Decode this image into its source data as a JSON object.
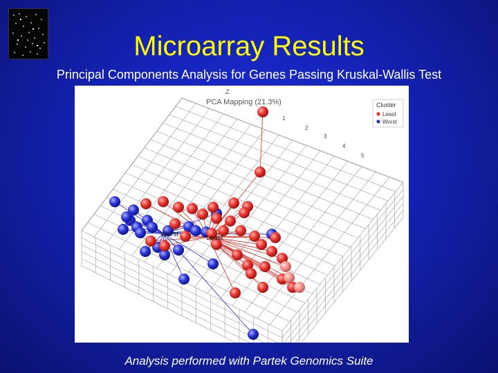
{
  "slide": {
    "title": "Microarray Results",
    "subtitle": "Principal Components Analysis for Genes Passing Kruskal-Wallis Test",
    "footer": "Analysis performed with Partek Genomics Suite"
  },
  "plot": {
    "title": "PCA Mapping (21.3%)",
    "legend_title": "Cluster",
    "legend": [
      {
        "label": "Least",
        "color": "#e8332e"
      },
      {
        "label": "Worst",
        "color": "#2a34d6"
      }
    ],
    "centroid_labels": {
      "worst": "Worst",
      "least": "Least"
    },
    "z_axis_label": "Z",
    "axis_ticks": [
      "1",
      "2",
      "3",
      "4",
      "5"
    ],
    "colors": {
      "least": "#e8332e",
      "worst": "#2a34d6",
      "background": "#1a28c8",
      "title": "#ffff00"
    }
  }
}
